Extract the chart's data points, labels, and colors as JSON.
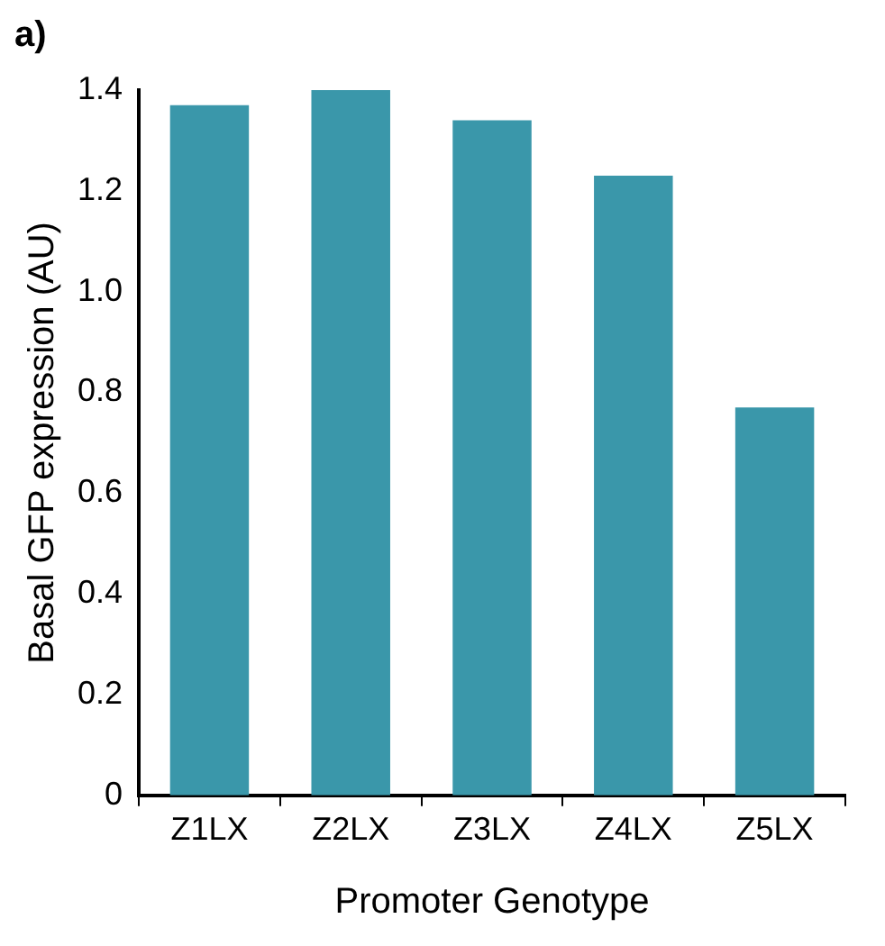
{
  "chart_data": {
    "type": "bar",
    "title": "a)",
    "xlabel": "Promoter Genotype",
    "ylabel": "Basal GFP expression (AU)",
    "categories": [
      "Z1LX",
      "Z2LX",
      "Z3LX",
      "Z4LX",
      "Z5LX"
    ],
    "values": [
      1.37,
      1.4,
      1.34,
      1.23,
      0.77
    ],
    "color": "#3a97aa",
    "ylim": [
      0,
      1.4
    ],
    "yticks": [
      0,
      0.2,
      0.4,
      0.6,
      0.8,
      {
        "value": 1,
        "label": "1.0"
      },
      1.2,
      1.4
    ],
    "grid": false,
    "legend": false
  }
}
